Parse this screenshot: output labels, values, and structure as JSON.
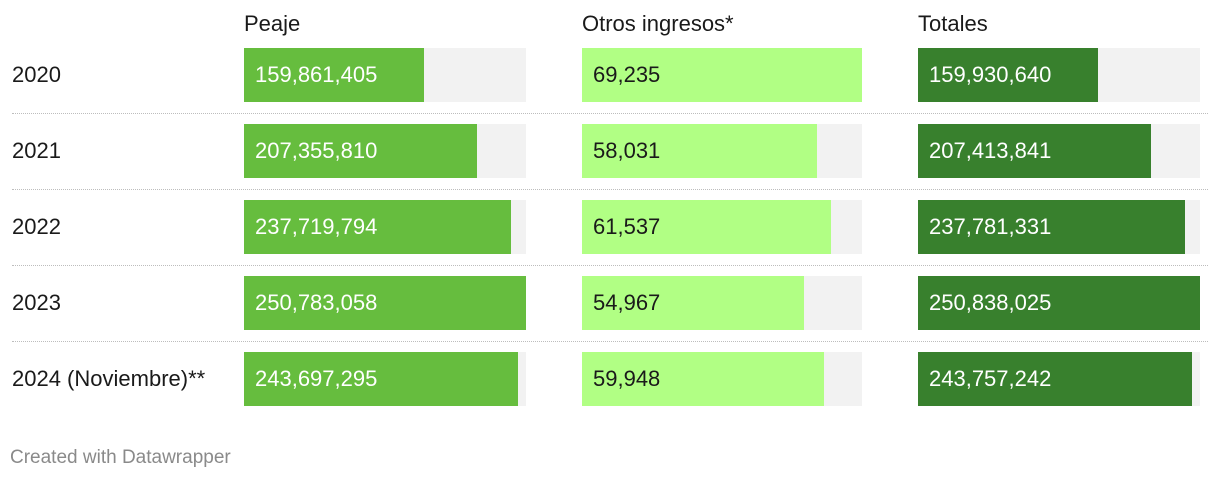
{
  "chart_data": {
    "type": "table",
    "columns": [
      {
        "key": "peaje",
        "label": "Peaje",
        "color": "#66bd3e",
        "text_color": "#ffffff"
      },
      {
        "key": "otros",
        "label": "Otros ingresos*",
        "color": "#b1ff84",
        "text_color": "#1a1a1a"
      },
      {
        "key": "totales",
        "label": "Totales",
        "color": "#38802d",
        "text_color": "#ffffff"
      }
    ],
    "rows": [
      {
        "label": "2020",
        "peaje": 159861405,
        "otros": 69235,
        "totales": 159930640,
        "peaje_text": "159,861,405",
        "otros_text": "69,235",
        "totales_text": "159,930,640"
      },
      {
        "label": "2021",
        "peaje": 207355810,
        "otros": 58031,
        "totales": 207413841,
        "peaje_text": "207,355,810",
        "otros_text": "58,031",
        "totales_text": "207,413,841"
      },
      {
        "label": "2022",
        "peaje": 237719794,
        "otros": 61537,
        "totales": 237781331,
        "peaje_text": "237,719,794",
        "otros_text": "61,537",
        "totales_text": "237,781,331"
      },
      {
        "label": "2023",
        "peaje": 250783058,
        "otros": 54967,
        "totales": 250838025,
        "peaje_text": "250,783,058",
        "otros_text": "54,967",
        "totales_text": "250,838,025"
      },
      {
        "label": "2024 (Noviembre)**",
        "peaje": 243697295,
        "otros": 59948,
        "totales": 243757242,
        "peaje_text": "243,697,295",
        "otros_text": "59,948",
        "totales_text": "243,757,242"
      }
    ]
  },
  "footer": {
    "text": "Created with Datawrapper"
  }
}
